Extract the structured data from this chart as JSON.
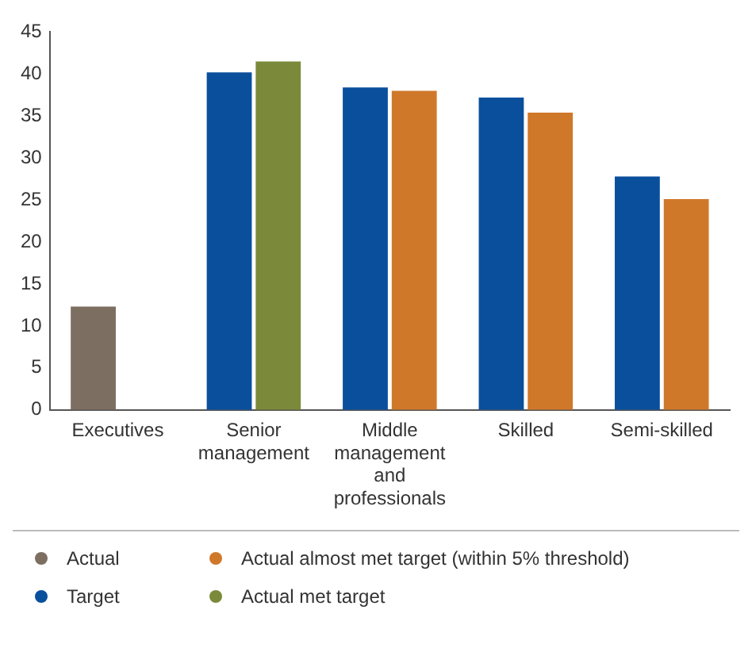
{
  "chart_data": {
    "type": "bar",
    "categories": [
      "Executives",
      "Senior management",
      "Middle management and professionals",
      "Skilled",
      "Semi-skilled"
    ],
    "ylim": [
      0,
      45
    ],
    "yticks": [
      0,
      5,
      10,
      15,
      20,
      25,
      30,
      35,
      40,
      45
    ],
    "grid": false,
    "legend": "bottom",
    "marker": "circle",
    "series": [
      {
        "name": "Actual",
        "color": "#7d6e62",
        "values": [
          12.3,
          null,
          null,
          null,
          null
        ]
      },
      {
        "name": "Target",
        "color": "#0a4f9c",
        "values": [
          null,
          40.2,
          38.4,
          37.2,
          27.8
        ]
      },
      {
        "name": "Actual almost met target (within 5% threshold)",
        "color": "#d0782a",
        "values": [
          null,
          null,
          38,
          35.4,
          25.1
        ]
      },
      {
        "name": "Actual met target",
        "color": "#7a8a3a",
        "values": [
          null,
          41.5,
          null,
          null,
          null
        ]
      }
    ]
  }
}
